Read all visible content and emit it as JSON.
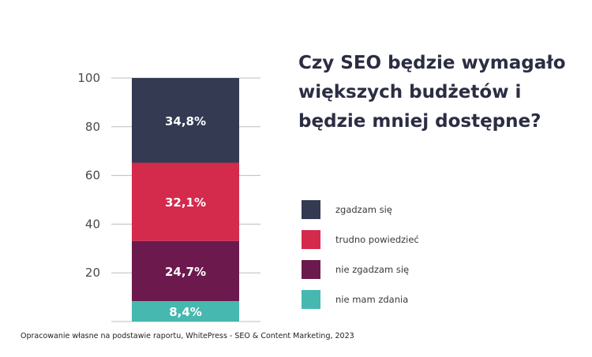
{
  "chart_data": {
    "type": "bar",
    "stacked": true,
    "title_lines": [
      "Czy SEO będzie wymagało",
      "większych budżetów i",
      "będzie mniej dostępne?"
    ],
    "ylim": [
      0,
      100
    ],
    "yticks": [
      "100",
      "80",
      "60",
      "40",
      "20"
    ],
    "grid": true,
    "legend_position": "right",
    "series": [
      {
        "name": "zgadzam się",
        "value": 34.8,
        "label": "34,8%",
        "color": "#333a52"
      },
      {
        "name": "trudno powiedzieć",
        "value": 32.1,
        "label": "32,1%",
        "color": "#d42a4c"
      },
      {
        "name": "nie zgadzam się",
        "value": 24.7,
        "label": "24,7%",
        "color": "#6c1a4e"
      },
      {
        "name": "nie mam zdania",
        "value": 8.4,
        "label": "8,4%",
        "color": "#46b8b0"
      }
    ]
  },
  "source": "Opracowanie własne na podstawie raportu, WhitePress - SEO & Content Marketing, 2023"
}
